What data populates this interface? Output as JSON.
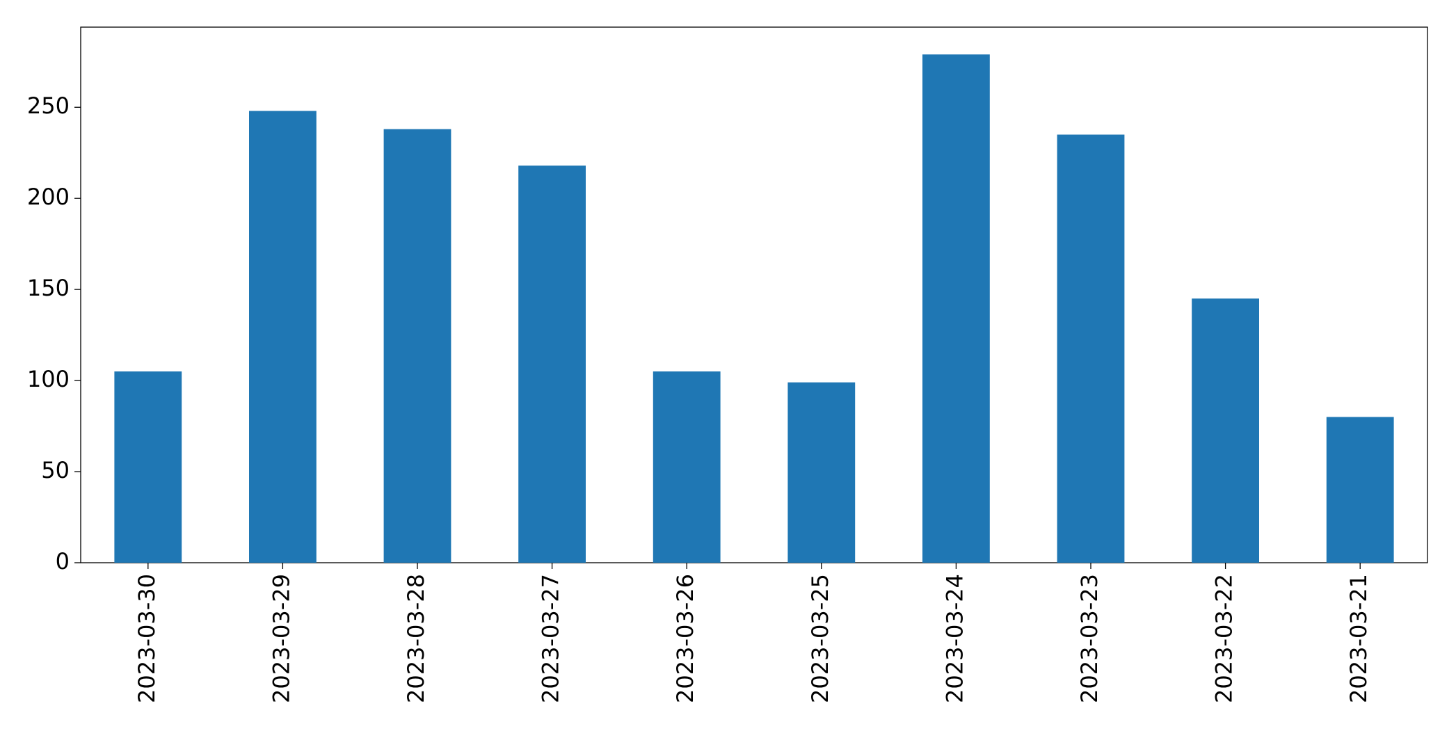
{
  "chart_data": {
    "type": "bar",
    "categories": [
      "2023-03-30",
      "2023-03-29",
      "2023-03-28",
      "2023-03-27",
      "2023-03-26",
      "2023-03-25",
      "2023-03-24",
      "2023-03-23",
      "2023-03-22",
      "2023-03-21"
    ],
    "values": [
      105,
      248,
      238,
      218,
      105,
      99,
      279,
      235,
      145,
      80
    ],
    "color": "#1f77b4",
    "ylim": [
      0,
      294
    ],
    "yticks": [
      0,
      50,
      100,
      150,
      200,
      250
    ],
    "grid": false
  }
}
